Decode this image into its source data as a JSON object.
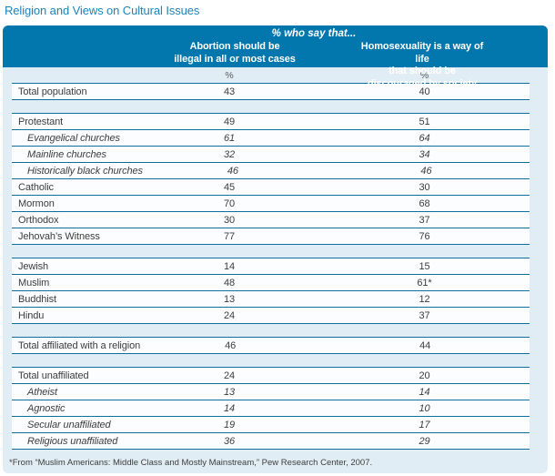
{
  "title": "Religion and Views on Cultural Issues",
  "header": {
    "caption": "% who say that...",
    "col1": "Abortion should be\nillegal in all or most cases",
    "col2": "Homosexuality is a way of life\nthat should be discouraged by society",
    "unit_row": {
      "col1": "%",
      "col2": "%"
    }
  },
  "footnote": "*From “Muslim Americans: Middle Class and Mostly Mainstream,” Pew Research Center, 2007.",
  "colors": {
    "accent": "#0277ae",
    "panel-bg": "#e1edf5",
    "row-bg": "#fbfdfe",
    "line": "#0e6f9f",
    "title-color": "#1d84b9",
    "text": "#3d3d3d",
    "muted": "#58595b"
  },
  "chart_data": {
    "type": "table",
    "title": "Religion and Views on Cultural Issues",
    "caption": "% who say that...",
    "columns": [
      "Abortion should be illegal in all or most cases",
      "Homosexuality is a way of life that should be discouraged by society"
    ],
    "unit": "%",
    "rows": [
      {
        "label": "Total population",
        "abortion": 43,
        "homosexuality": 40
      },
      {
        "label": "Protestant",
        "abortion": 49,
        "homosexuality": 51
      },
      {
        "label": "Evangelical churches",
        "abortion": 61,
        "homosexuality": 64,
        "subrow": true
      },
      {
        "label": "Mainline churches",
        "abortion": 32,
        "homosexuality": 34,
        "subrow": true
      },
      {
        "label": "Historically black churches",
        "abortion": 46,
        "homosexuality": 46,
        "subrow": true
      },
      {
        "label": "Catholic",
        "abortion": 45,
        "homosexuality": 30
      },
      {
        "label": "Mormon",
        "abortion": 70,
        "homosexuality": 68
      },
      {
        "label": "Orthodox",
        "abortion": 30,
        "homosexuality": 37
      },
      {
        "label": "Jehovah’s Witness",
        "abortion": 77,
        "homosexuality": 76
      },
      {
        "label": "Jewish",
        "abortion": 14,
        "homosexuality": 15
      },
      {
        "label": "Muslim",
        "abortion": 48,
        "homosexuality": 61,
        "note": "*"
      },
      {
        "label": "Buddhist",
        "abortion": 13,
        "homosexuality": 12
      },
      {
        "label": "Hindu",
        "abortion": 24,
        "homosexuality": 37
      },
      {
        "label": "Total affiliated with a religion",
        "abortion": 46,
        "homosexuality": 44
      },
      {
        "label": "Total unaffiliated",
        "abortion": 24,
        "homosexuality": 20
      },
      {
        "label": "Atheist",
        "abortion": 13,
        "homosexuality": 14,
        "subrow": true
      },
      {
        "label": "Agnostic",
        "abortion": 14,
        "homosexuality": 10,
        "subrow": true
      },
      {
        "label": "Secular unaffiliated",
        "abortion": 19,
        "homosexuality": 17,
        "subrow": true
      },
      {
        "label": "Religious unaffiliated",
        "abortion": 36,
        "homosexuality": 29,
        "subrow": true
      }
    ],
    "spacer_after": [
      "Total population",
      "Jehovah’s Witness",
      "Hindu",
      "Total affiliated with a religion"
    ],
    "footnote": "*From “Muslim Americans: Middle Class and Mostly Mainstream,” Pew Research Center, 2007."
  }
}
